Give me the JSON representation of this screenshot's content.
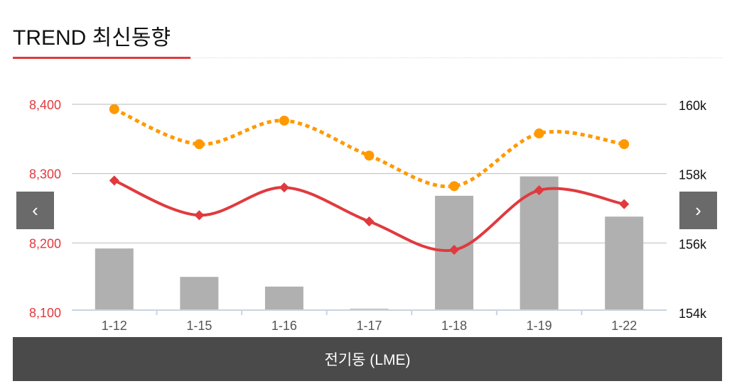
{
  "header": {
    "title": "TREND 최신동향"
  },
  "footer": {
    "label": "전기동 (LME)"
  },
  "nav": {
    "prev": "‹",
    "next": "›"
  },
  "colors": {
    "red": "#e03a3e",
    "orange": "#ff9900",
    "bar": "#b0b0b0"
  },
  "chart_data": {
    "type": "bar+line",
    "categories": [
      "1-12",
      "1-15",
      "1-16",
      "1-17",
      "1-18",
      "1-19",
      "1-22"
    ],
    "left_axis": {
      "ticks": [
        "8,100",
        "8,200",
        "8,300",
        "8,400"
      ],
      "range": [
        8100,
        8400
      ]
    },
    "right_axis": {
      "ticks": [
        "154k",
        "156k",
        "158k",
        "160k"
      ],
      "range": [
        154000,
        160000
      ]
    },
    "series": [
      {
        "name": "bars",
        "type": "bar",
        "axis": "left",
        "values": [
          8192,
          8151,
          8137,
          8105,
          8268,
          8296,
          8238
        ]
      },
      {
        "name": "red line",
        "type": "line",
        "axis": "left",
        "values": [
          8290,
          8240,
          8280,
          8231,
          8190,
          8276,
          8256
        ]
      },
      {
        "name": "orange dotted",
        "type": "line",
        "axis": "right",
        "values": [
          159860,
          158850,
          159530,
          158520,
          157640,
          159160,
          158850
        ]
      }
    ],
    "grid": true
  }
}
